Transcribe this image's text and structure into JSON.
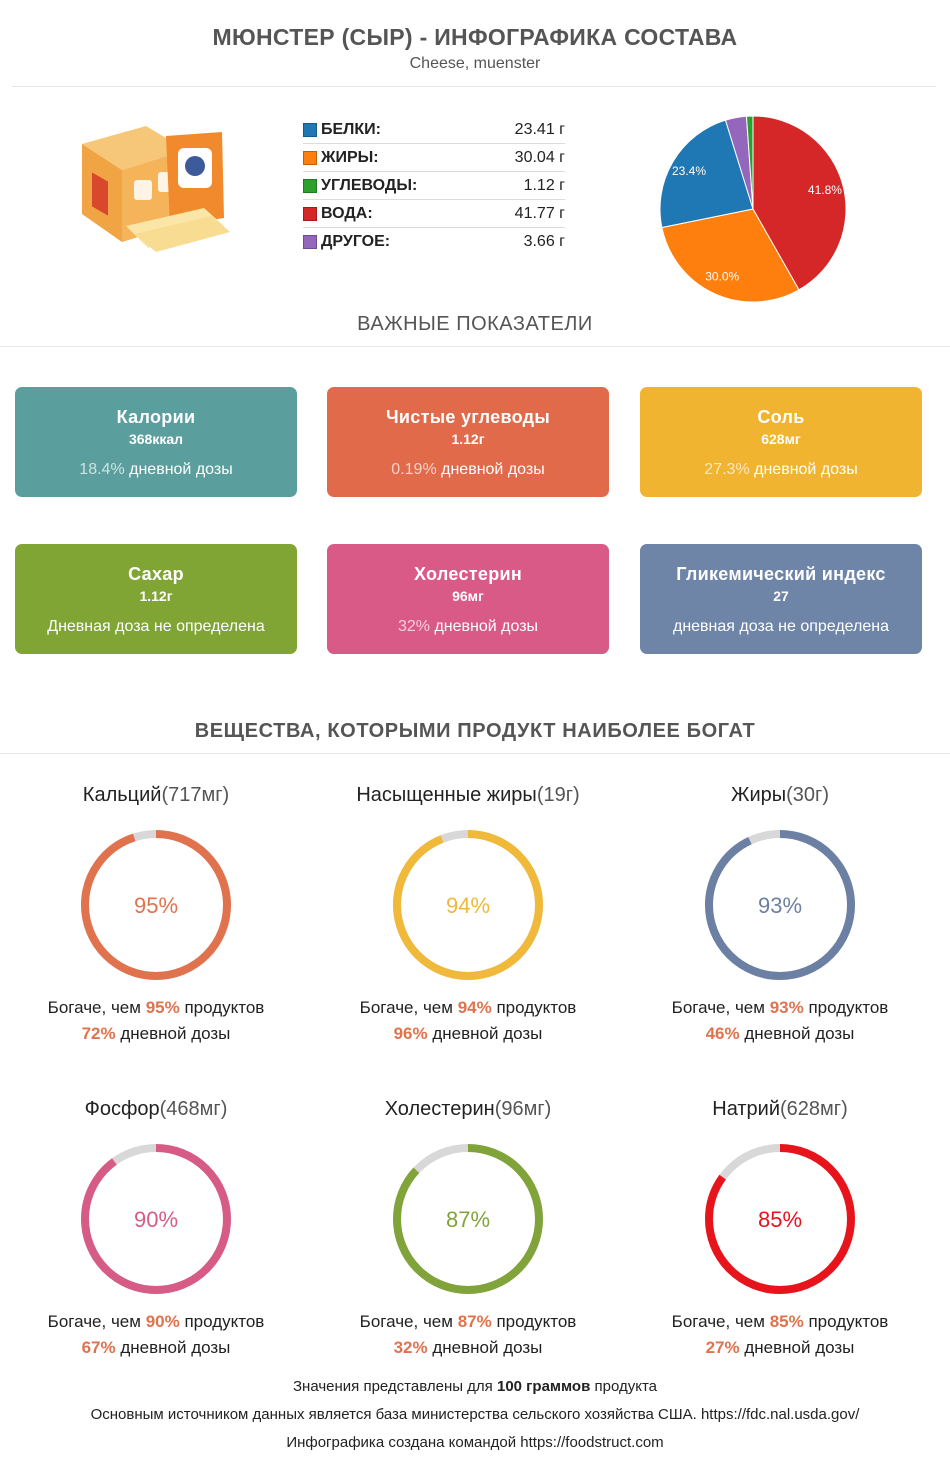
{
  "header": {
    "title": "МЮНСТЕР (СЫР) - ИНФОГРАФИКА СОСТАВА",
    "subtitle": "Cheese, muenster"
  },
  "composition": [
    {
      "name": "БЕЛКИ",
      "value": "23.41 г",
      "amount": 23.41,
      "color": "#1f77b4"
    },
    {
      "name": "ЖИРЫ",
      "value": "30.04 г",
      "amount": 30.04,
      "color": "#ff7f0e"
    },
    {
      "name": "УГЛЕВОДЫ",
      "value": "1.12 г",
      "amount": 1.12,
      "color": "#2ca02c"
    },
    {
      "name": "ВОДА",
      "value": "41.77 г",
      "amount": 41.77,
      "color": "#d62728"
    },
    {
      "name": "ДРУГОЕ",
      "value": "3.66 г",
      "amount": 3.66,
      "color": "#9467bd"
    }
  ],
  "pie_labels": {
    "water": "41.8%",
    "fat": "30.0%",
    "protein": "23.4%"
  },
  "sections": {
    "key_indicators": "ВАЖНЫЕ ПОКАЗАТЕЛИ",
    "richest": "ВЕЩЕСТВА, КОТОРЫМИ ПРОДУКТ НАИБОЛЕЕ БОГАТ"
  },
  "cards": [
    {
      "name": "Калории",
      "value": "368ккал",
      "pct": "18.4%",
      "daily": "дневной дозы",
      "color": "#5a9e9e"
    },
    {
      "name": "Чистые углеводы",
      "value": "1.12г",
      "pct": "0.19%",
      "daily": "дневной дозы",
      "color": "#e06a4a"
    },
    {
      "name": "Соль",
      "value": "628мг",
      "pct": "27.3%",
      "daily": "дневной дозы",
      "color": "#f0b430"
    },
    {
      "name": "Сахар",
      "value": "1.12г",
      "pct": "",
      "daily": "Дневная доза не определена",
      "color": "#80a535"
    },
    {
      "name": "Холестерин",
      "value": "96мг",
      "pct": "32%",
      "daily": "дневной дозы",
      "color": "#da5a87"
    },
    {
      "name": "Гликемический индекс",
      "value": "27",
      "pct": "",
      "daily": "дневная доза не определена",
      "color": "#6e85a8"
    }
  ],
  "richest": [
    {
      "name": "Кальций",
      "amount": "(717мг)",
      "percent": "95%",
      "fill": 0.95,
      "color": "#e0734e",
      "richer_prefix": "Богаче, чем",
      "richer_pct": "95%",
      "richer_suffix": "продуктов",
      "daily_pct": "72%",
      "daily_label": "дневной дозы"
    },
    {
      "name": "Насыщенные жиры",
      "amount": "(19г)",
      "percent": "94%",
      "fill": 0.94,
      "color": "#f0b93a",
      "richer_prefix": "Богаче, чем",
      "richer_pct": "94%",
      "richer_suffix": "продуктов",
      "daily_pct": "96%",
      "daily_label": "дневной дозы"
    },
    {
      "name": "Жиры",
      "amount": "(30г)",
      "percent": "93%",
      "fill": 0.93,
      "color": "#6c80a3",
      "richer_prefix": "Богаче, чем",
      "richer_pct": "93%",
      "richer_suffix": "продуктов",
      "daily_pct": "46%",
      "daily_label": "дневной дозы"
    },
    {
      "name": "Фосфор",
      "amount": "(468мг)",
      "percent": "90%",
      "fill": 0.9,
      "color": "#d65c86",
      "richer_prefix": "Богаче, чем",
      "richer_pct": "90%",
      "richer_suffix": "продуктов",
      "daily_pct": "67%",
      "daily_label": "дневной дозы"
    },
    {
      "name": "Холестерин",
      "amount": "(96мг)",
      "percent": "87%",
      "fill": 0.87,
      "color": "#80a33a",
      "richer_prefix": "Богаче, чем",
      "richer_pct": "87%",
      "richer_suffix": "продуктов",
      "daily_pct": "32%",
      "daily_label": "дневной дозы"
    },
    {
      "name": "Натрий",
      "amount": "(628мг)",
      "percent": "85%",
      "fill": 0.85,
      "color": "#e8141c",
      "richer_prefix": "Богаче, чем",
      "richer_pct": "85%",
      "richer_suffix": "продуктов",
      "daily_pct": "27%",
      "daily_label": "дневной дозы"
    }
  ],
  "footer": {
    "line1_pre": "Значения представлены для",
    "line1_bold": "100 граммов",
    "line1_post": "продукта",
    "line2": "Основным источником данных является база министерства сельского хозяйства США. https://fdc.nal.usda.gov/",
    "line3": "Инфографика создана командой https://foodstruct.com"
  },
  "ring_track_color": "#d8d8d8"
}
